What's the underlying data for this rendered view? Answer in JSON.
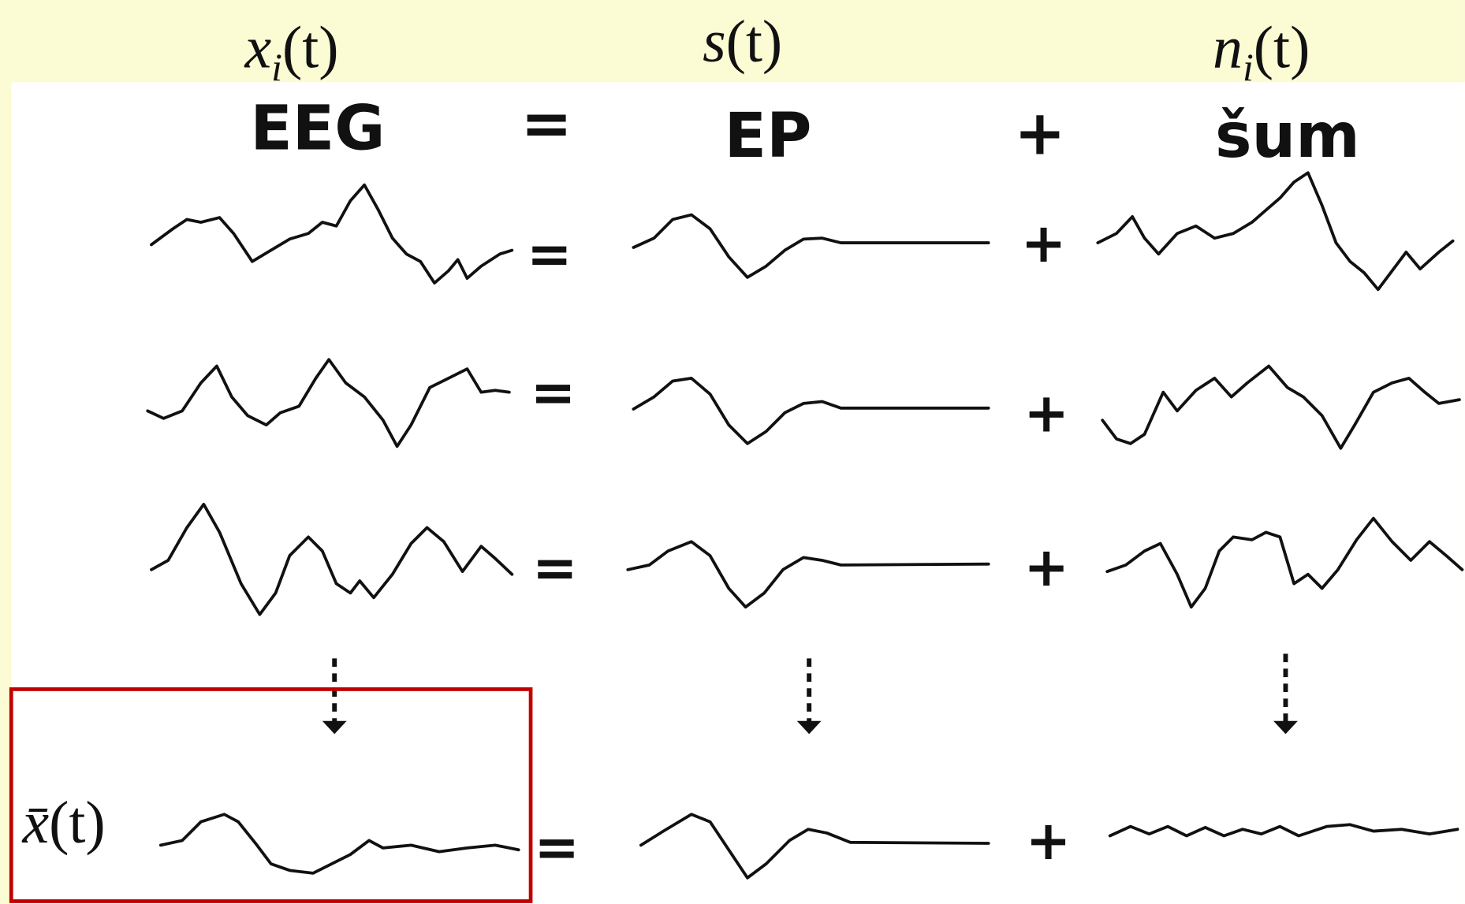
{
  "header": {
    "formulas": [
      {
        "base": "x",
        "sub": "i",
        "arg": "(t)"
      },
      {
        "base": "s",
        "arg": "(t)"
      },
      {
        "base": "n",
        "sub": "i",
        "arg": "(t)"
      }
    ]
  },
  "titles": {
    "eeg": "EEG",
    "equals": "=",
    "ep": "EP",
    "plus": "+",
    "noise": "šum"
  },
  "rows": [
    {
      "equals": "=",
      "plus": "+"
    },
    {
      "equals": "=",
      "plus": "+"
    },
    {
      "equals": "=",
      "plus": "+"
    },
    {
      "equals": "=",
      "plus": "+"
    }
  ],
  "average": {
    "base": "x̄",
    "arg": "(t)"
  }
}
